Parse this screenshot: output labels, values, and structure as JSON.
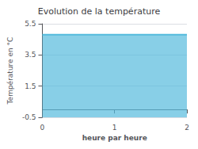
{
  "chart_data": {
    "type": "area",
    "title": "Evolution de la température",
    "xlabel": "heure par heure",
    "ylabel": "Température en °C",
    "x": [
      0,
      2
    ],
    "values": [
      4.8,
      4.8
    ],
    "color": "#55bbdd",
    "xlim": [
      0,
      2
    ],
    "ylim": [
      -0.5,
      5.5
    ],
    "xticks": [
      0,
      1,
      2
    ],
    "yticks": [
      -0.5,
      1.5,
      3.5,
      5.5
    ],
    "grid": "y"
  }
}
